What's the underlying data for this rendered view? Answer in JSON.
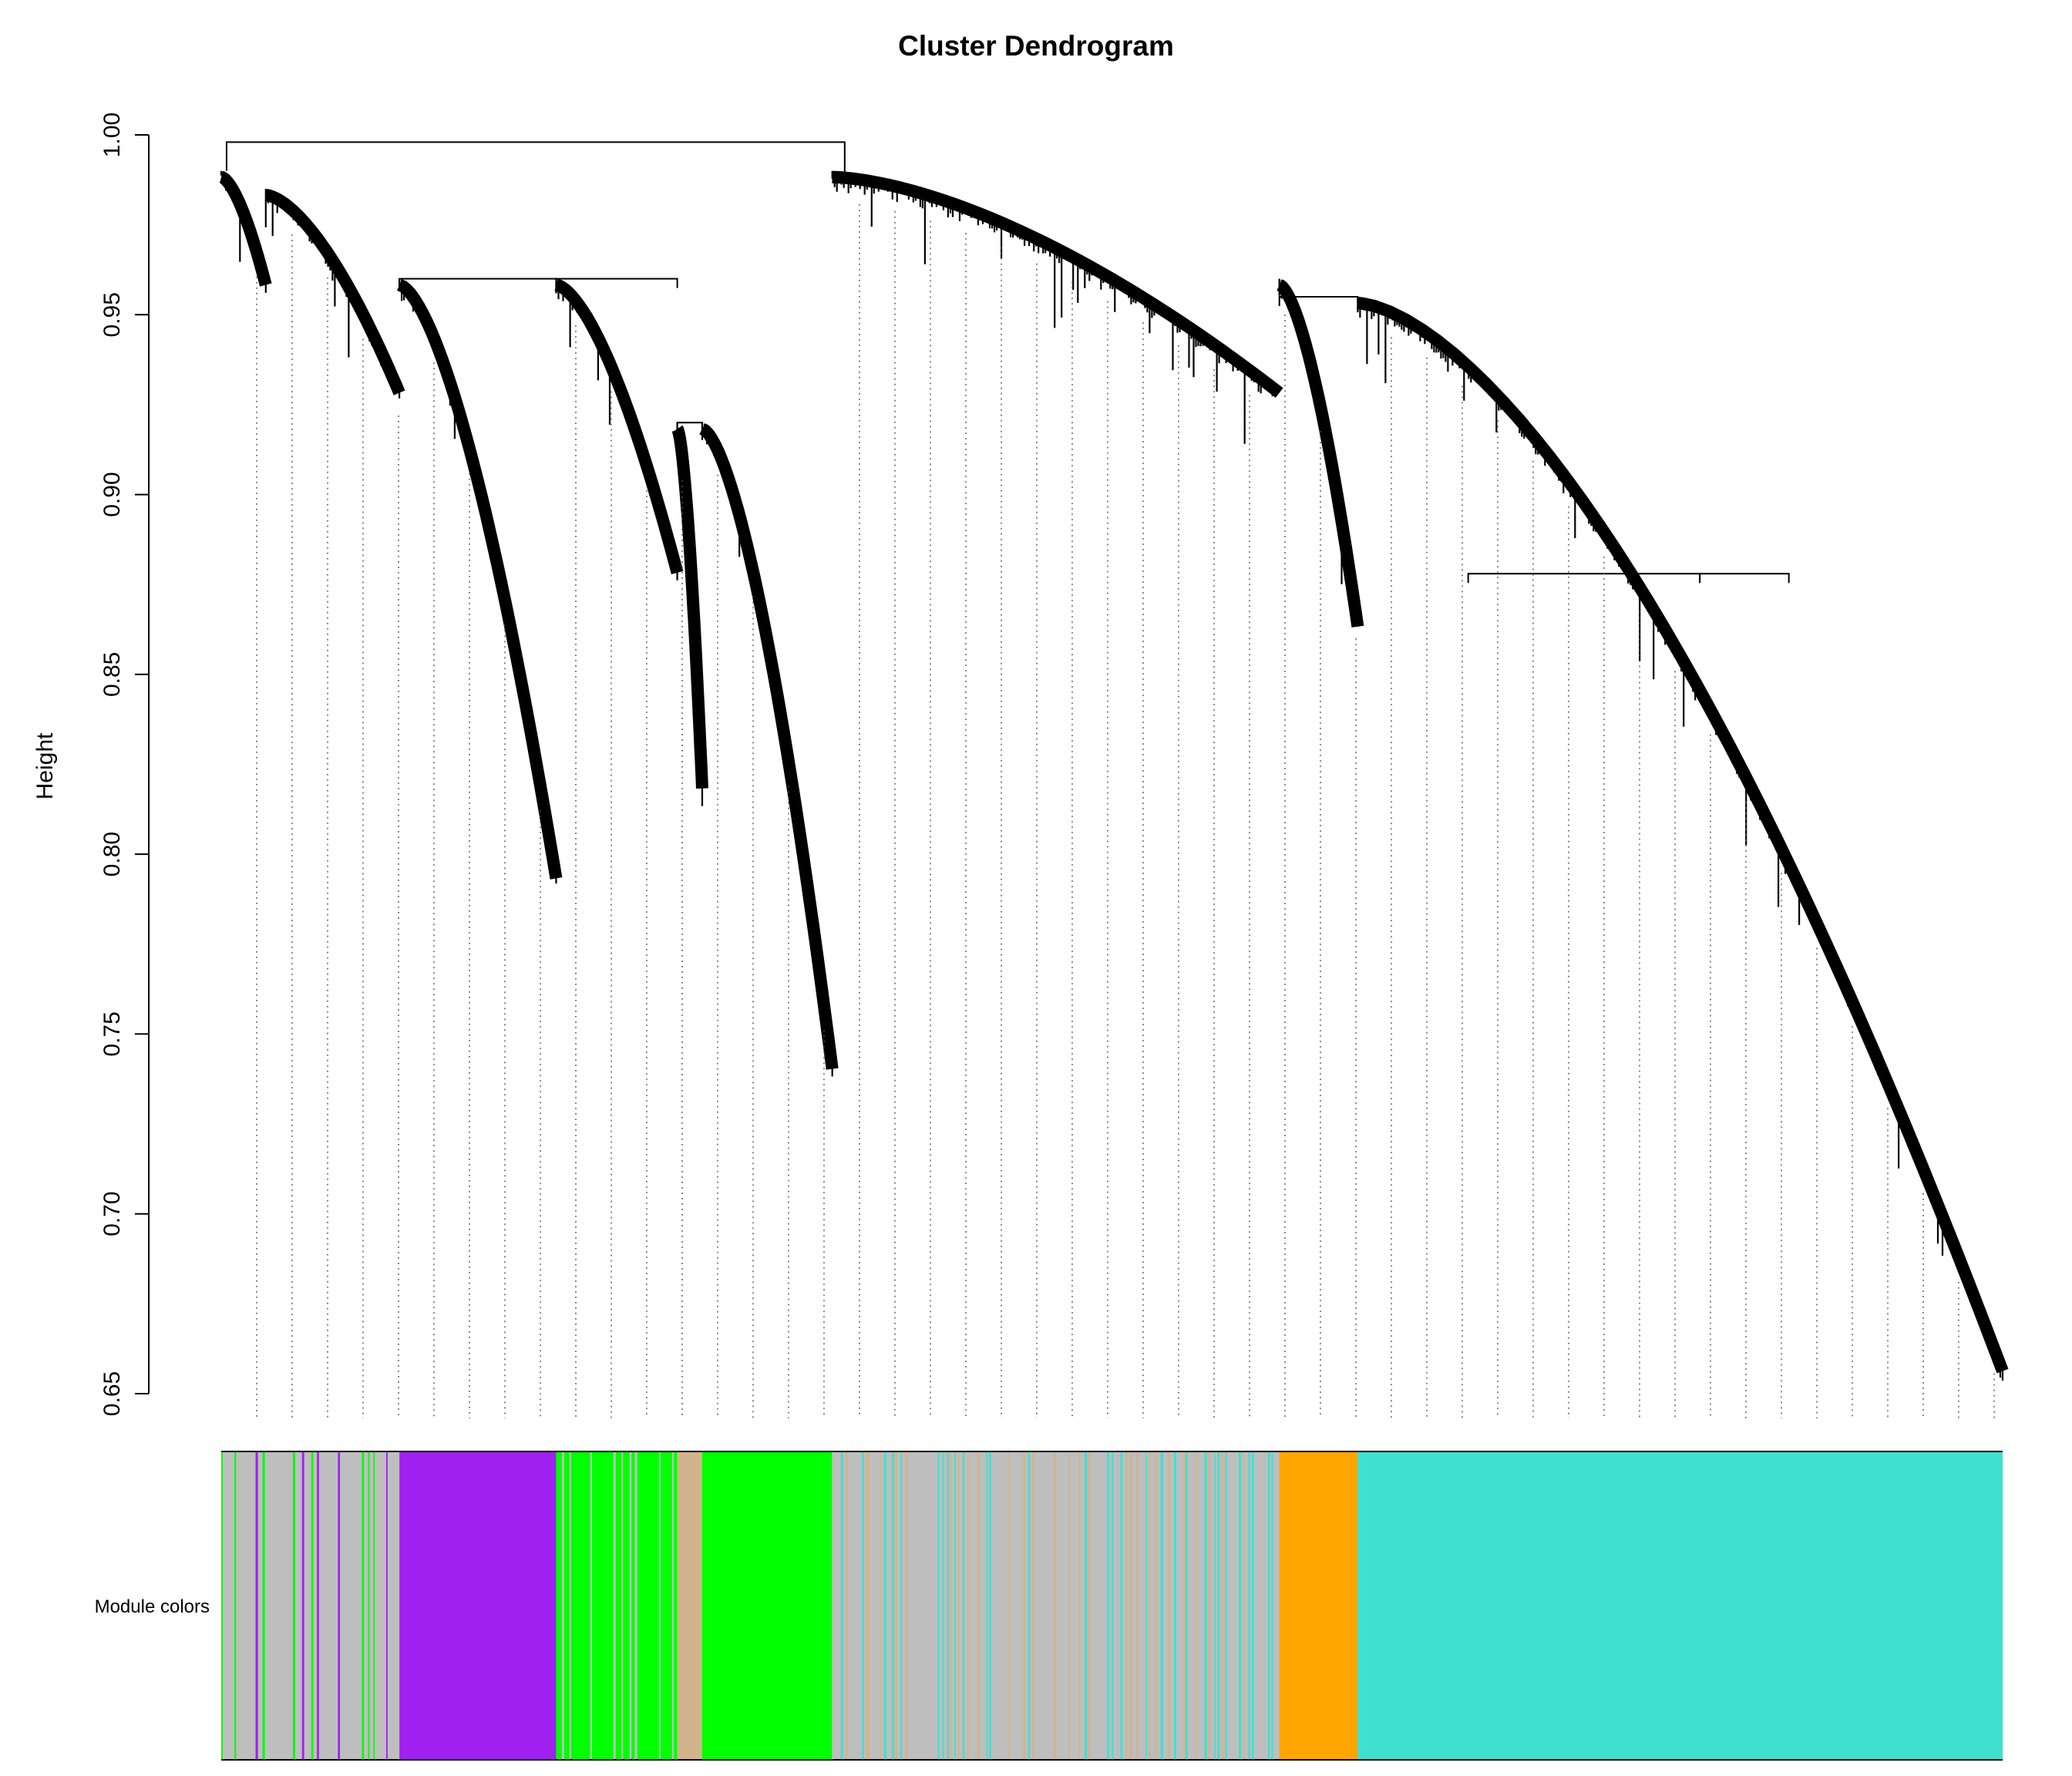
{
  "chart_data": {
    "type": "dendrogram",
    "title": "Cluster Dendrogram",
    "xlabel": "",
    "ylabel": "Height",
    "ylim": [
      0.65,
      1.0
    ],
    "yticks": [
      "0.65",
      "0.70",
      "0.75",
      "0.80",
      "0.85",
      "0.90",
      "0.95",
      "1.00"
    ],
    "grid": false,
    "root_height": 0.998,
    "clusters": [
      {
        "name": "grey",
        "color": "#bebebe",
        "start": 0.0,
        "end": 0.025,
        "top": 0.99,
        "bottom": 0.96
      },
      {
        "name": "purple-dense",
        "color": "#a020f0",
        "start": 0.025,
        "end": 0.1,
        "top": 0.985,
        "bottom": 0.93
      },
      {
        "name": "green-dense",
        "color": "#00ff00",
        "start": 0.1,
        "end": 0.1,
        "top": 0.978,
        "bottom": 0.95
      },
      {
        "name": "purple",
        "color": "#a020f0",
        "start": 0.1,
        "end": 0.188,
        "top": 0.96,
        "bottom": 0.795
      },
      {
        "name": "green-mix",
        "color": "#00ff00",
        "start": 0.188,
        "end": 0.256,
        "top": 0.96,
        "bottom": 0.88
      },
      {
        "name": "tan",
        "color": "#d2b48c",
        "start": 0.256,
        "end": 0.27,
        "top": 0.92,
        "bottom": 0.82
      },
      {
        "name": "green",
        "color": "#00ff00",
        "start": 0.27,
        "end": 0.343,
        "top": 0.92,
        "bottom": 0.742
      },
      {
        "name": "grey-mid",
        "color": "#bebebe",
        "start": 0.343,
        "end": 0.594,
        "top": 0.99,
        "bottom": 0.93
      },
      {
        "name": "orange",
        "color": "#ffa500",
        "start": 0.594,
        "end": 0.638,
        "top": 0.96,
        "bottom": 0.865
      },
      {
        "name": "turquoise",
        "color": "#40e0d0",
        "start": 0.638,
        "end": 1.0,
        "top": 0.955,
        "bottom": 0.658
      }
    ]
  },
  "color_bar": {
    "label": "Module colors",
    "segments": [
      {
        "color": "#bebebe",
        "start": 0.0,
        "end": 0.1,
        "mix": [
          "#a020f0",
          "#00ff00",
          "#bebebe"
        ]
      },
      {
        "color": "#a020f0",
        "start": 0.1,
        "end": 0.188
      },
      {
        "color": "#00ff00",
        "start": 0.188,
        "end": 0.256,
        "mix": [
          "#00ff00",
          "#bebebe"
        ]
      },
      {
        "color": "#d2b48c",
        "start": 0.256,
        "end": 0.27
      },
      {
        "color": "#00ff00",
        "start": 0.27,
        "end": 0.343
      },
      {
        "color": "#bebebe",
        "start": 0.343,
        "end": 0.594,
        "mix": [
          "#40e0d0",
          "#d2b48c",
          "#bebebe"
        ]
      },
      {
        "color": "#ffa500",
        "start": 0.594,
        "end": 0.638
      },
      {
        "color": "#40e0d0",
        "start": 0.638,
        "end": 1.0
      }
    ]
  }
}
